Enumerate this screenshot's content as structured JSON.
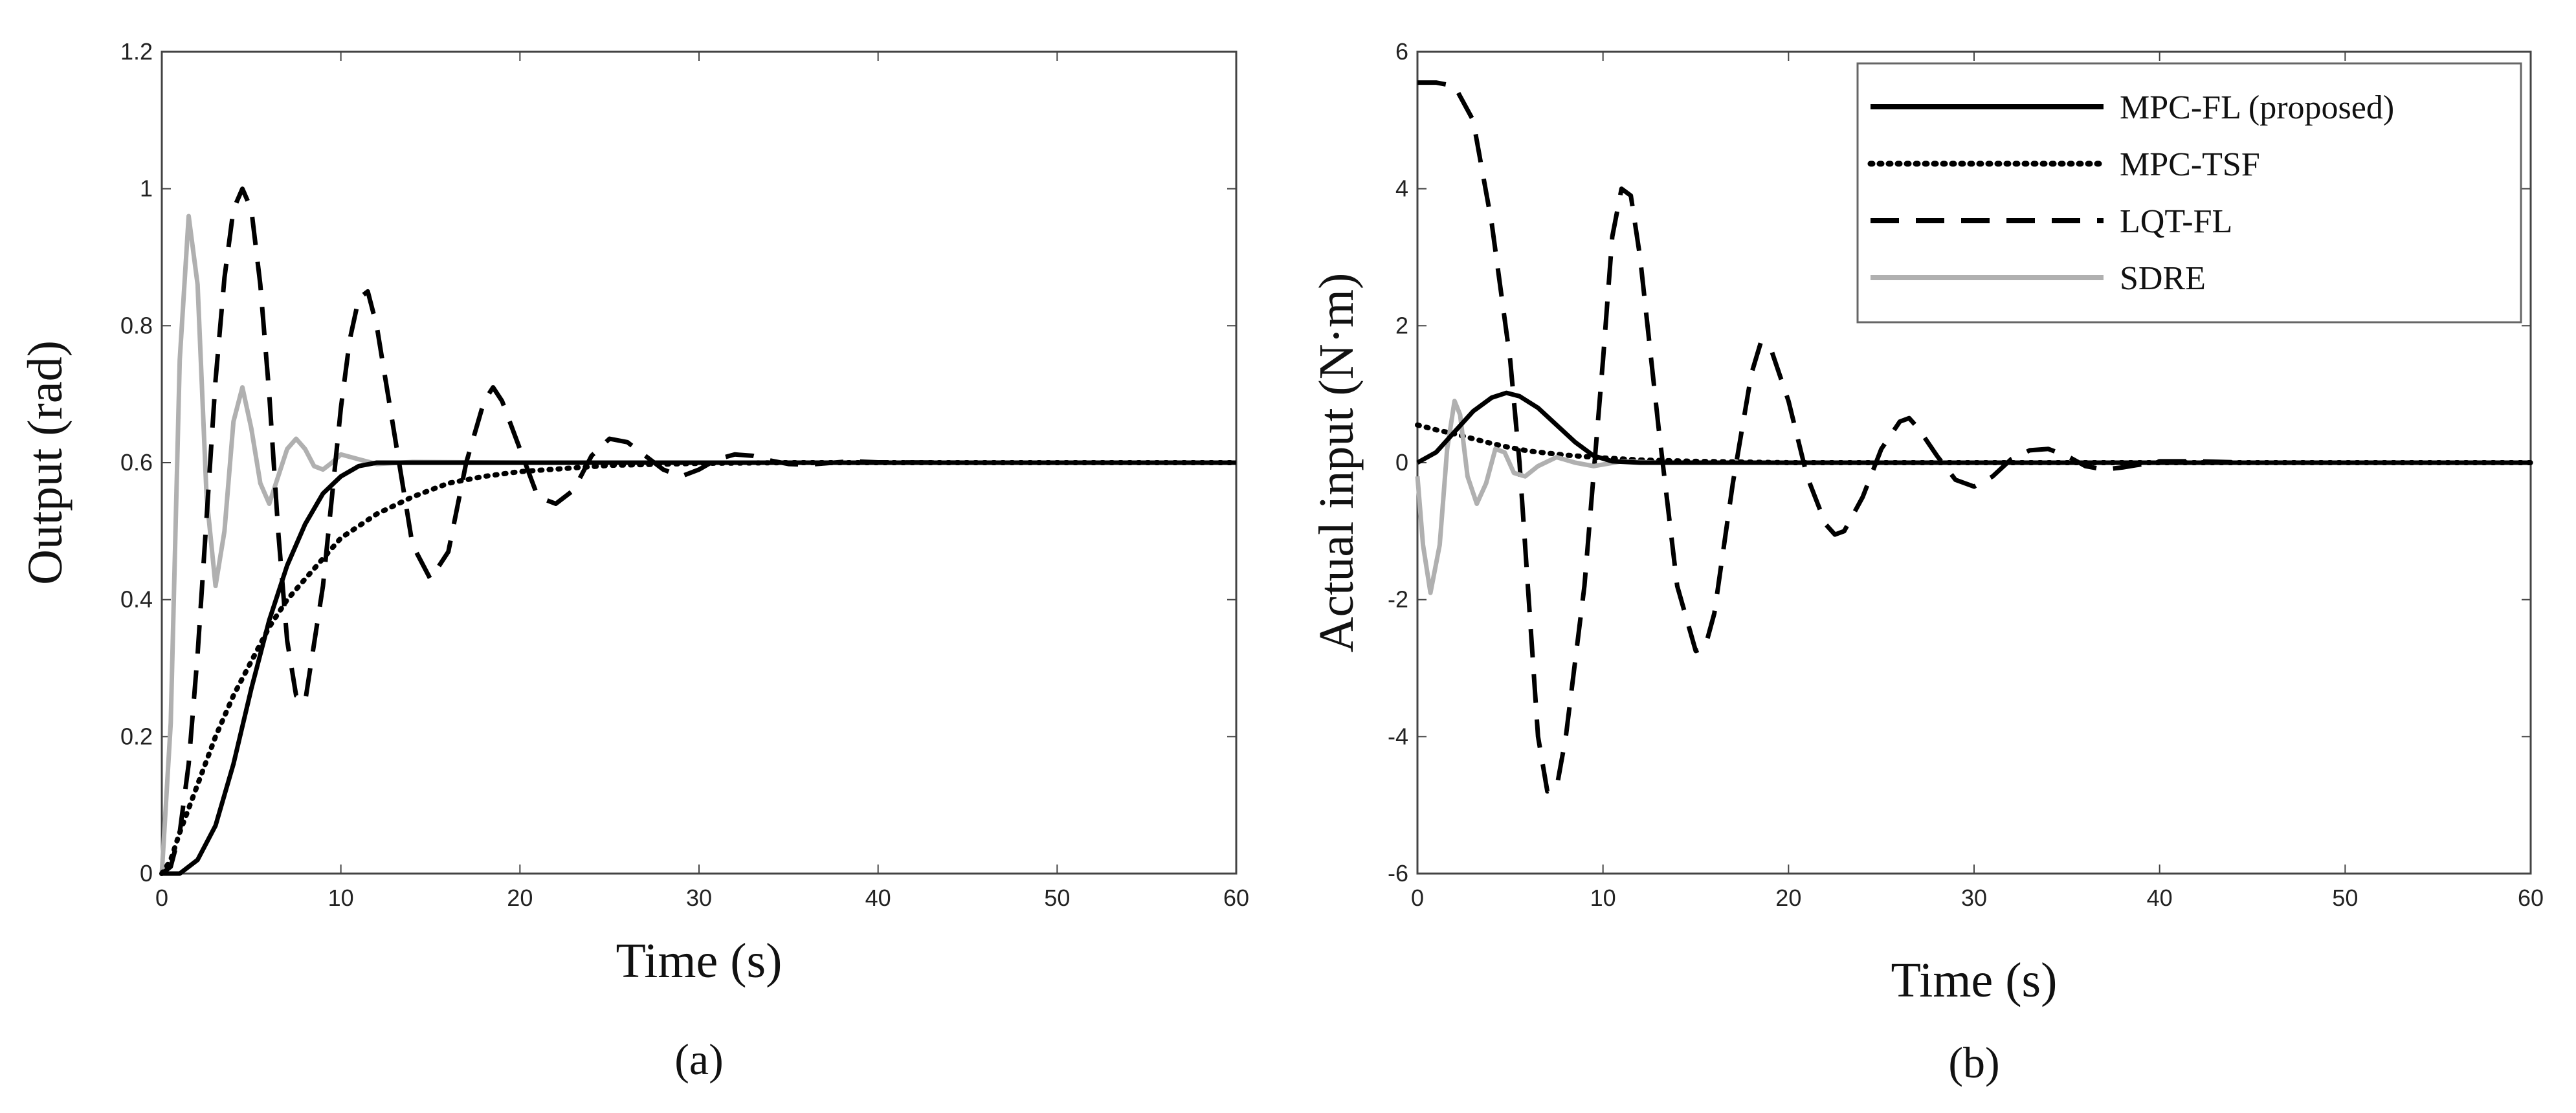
{
  "chart_data": [
    {
      "id": "a",
      "type": "line",
      "caption": "(a)",
      "xlabel": "Time (s)",
      "ylabel": "Output (rad)",
      "xlim": [
        0,
        60
      ],
      "ylim": [
        0,
        1.2
      ],
      "xticks": [
        0,
        10,
        20,
        30,
        40,
        50,
        60
      ],
      "yticks": [
        0,
        0.2,
        0.4,
        0.6,
        0.8,
        1,
        1.2
      ],
      "ytick_labels": [
        "0",
        "0.2",
        "0.4",
        "0.6",
        "0.8",
        "1",
        "1.2"
      ],
      "grid": false,
      "legend": null,
      "series": [
        {
          "name": "SDRE",
          "color": "#b0b0b0",
          "style": "solid",
          "points": [
            [
              0,
              0
            ],
            [
              0.5,
              0.22
            ],
            [
              1.0,
              0.75
            ],
            [
              1.5,
              0.96
            ],
            [
              2.0,
              0.86
            ],
            [
              2.5,
              0.55
            ],
            [
              3.0,
              0.42
            ],
            [
              3.5,
              0.5
            ],
            [
              4.0,
              0.66
            ],
            [
              4.5,
              0.71
            ],
            [
              5.0,
              0.65
            ],
            [
              5.5,
              0.57
            ],
            [
              6.0,
              0.54
            ],
            [
              6.5,
              0.58
            ],
            [
              7.0,
              0.62
            ],
            [
              7.5,
              0.635
            ],
            [
              8.0,
              0.62
            ],
            [
              8.5,
              0.595
            ],
            [
              9.0,
              0.59
            ],
            [
              9.5,
              0.6
            ],
            [
              10,
              0.612
            ],
            [
              11,
              0.605
            ],
            [
              12,
              0.598
            ],
            [
              14,
              0.601
            ],
            [
              20,
              0.6
            ],
            [
              60,
              0.6
            ]
          ]
        },
        {
          "name": "LQT-FL",
          "color": "#000000",
          "style": "dashed",
          "points": [
            [
              0,
              0
            ],
            [
              0.5,
              0.01
            ],
            [
              1.0,
              0.06
            ],
            [
              1.5,
              0.16
            ],
            [
              2.0,
              0.32
            ],
            [
              2.5,
              0.52
            ],
            [
              3.0,
              0.72
            ],
            [
              3.5,
              0.87
            ],
            [
              4.0,
              0.97
            ],
            [
              4.5,
              1.0
            ],
            [
              5.0,
              0.97
            ],
            [
              5.5,
              0.86
            ],
            [
              6.0,
              0.7
            ],
            [
              6.5,
              0.5
            ],
            [
              7.0,
              0.34
            ],
            [
              7.5,
              0.26
            ],
            [
              8.0,
              0.25
            ],
            [
              9.0,
              0.42
            ],
            [
              10,
              0.68
            ],
            [
              10.5,
              0.78
            ],
            [
              11,
              0.84
            ],
            [
              11.5,
              0.85
            ],
            [
              12,
              0.8
            ],
            [
              13,
              0.64
            ],
            [
              14,
              0.48
            ],
            [
              15,
              0.43
            ],
            [
              16,
              0.47
            ],
            [
              17,
              0.6
            ],
            [
              18,
              0.69
            ],
            [
              18.5,
              0.71
            ],
            [
              19,
              0.69
            ],
            [
              20,
              0.62
            ],
            [
              21,
              0.55
            ],
            [
              22,
              0.54
            ],
            [
              23,
              0.56
            ],
            [
              24,
              0.61
            ],
            [
              25,
              0.635
            ],
            [
              26,
              0.63
            ],
            [
              27,
              0.61
            ],
            [
              28,
              0.59
            ],
            [
              29,
              0.58
            ],
            [
              30,
              0.59
            ],
            [
              31,
              0.605
            ],
            [
              32,
              0.612
            ],
            [
              33,
              0.61
            ],
            [
              34,
              0.603
            ],
            [
              35,
              0.598
            ],
            [
              36,
              0.597
            ],
            [
              37,
              0.599
            ],
            [
              38,
              0.601
            ],
            [
              39,
              0.6015
            ],
            [
              40,
              0.6005
            ],
            [
              45,
              0.6
            ],
            [
              60,
              0.6
            ]
          ]
        },
        {
          "name": "MPC-TSF",
          "color": "#000000",
          "style": "dotted",
          "points": [
            [
              0,
              0
            ],
            [
              0.5,
              0.02
            ],
            [
              1,
              0.06
            ],
            [
              2,
              0.13
            ],
            [
              3,
              0.2
            ],
            [
              4,
              0.26
            ],
            [
              5,
              0.31
            ],
            [
              6,
              0.36
            ],
            [
              7,
              0.4
            ],
            [
              8,
              0.43
            ],
            [
              9,
              0.46
            ],
            [
              10,
              0.49
            ],
            [
              12,
              0.525
            ],
            [
              14,
              0.55
            ],
            [
              16,
              0.57
            ],
            [
              18,
              0.58
            ],
            [
              20,
              0.587
            ],
            [
              25,
              0.596
            ],
            [
              30,
              0.599
            ],
            [
              35,
              0.6
            ],
            [
              60,
              0.6
            ]
          ]
        },
        {
          "name": "MPC-FL (proposed)",
          "color": "#000000",
          "style": "solid",
          "points": [
            [
              0,
              0
            ],
            [
              1,
              0
            ],
            [
              2,
              0.02
            ],
            [
              3,
              0.07
            ],
            [
              4,
              0.16
            ],
            [
              5,
              0.27
            ],
            [
              6,
              0.37
            ],
            [
              7,
              0.45
            ],
            [
              8,
              0.51
            ],
            [
              9,
              0.555
            ],
            [
              10,
              0.58
            ],
            [
              11,
              0.595
            ],
            [
              12,
              0.6
            ],
            [
              14,
              0.6
            ],
            [
              60,
              0.6
            ]
          ]
        }
      ]
    },
    {
      "id": "b",
      "type": "line",
      "caption": "(b)",
      "xlabel": "Time (s)",
      "ylabel": "Actual input (N·m)",
      "xlim": [
        0,
        60
      ],
      "ylim": [
        -6,
        6
      ],
      "xticks": [
        0,
        10,
        20,
        30,
        40,
        50,
        60
      ],
      "yticks": [
        -6,
        -4,
        -2,
        0,
        2,
        4,
        6
      ],
      "ytick_labels": [
        "-6",
        "-4",
        "-2",
        "0",
        "2",
        "4",
        "6"
      ],
      "grid": false,
      "legend": {
        "placement": "top-right",
        "entries": [
          {
            "label": "MPC-FL (proposed)",
            "color": "#000000",
            "style": "solid"
          },
          {
            "label": "MPC-TSF",
            "color": "#000000",
            "style": "dotted"
          },
          {
            "label": "LQT-FL",
            "color": "#000000",
            "style": "dashed"
          },
          {
            "label": "SDRE",
            "color": "#b0b0b0",
            "style": "solid"
          }
        ]
      },
      "series": [
        {
          "name": "LQT-FL",
          "color": "#000000",
          "style": "dashed",
          "points": [
            [
              0,
              5.55
            ],
            [
              1,
              5.55
            ],
            [
              2,
              5.5
            ],
            [
              3,
              5.0
            ],
            [
              4,
              3.5
            ],
            [
              5,
              1.5
            ],
            [
              5.5,
              0
            ],
            [
              6,
              -2.0
            ],
            [
              6.5,
              -4.0
            ],
            [
              7.0,
              -4.8
            ],
            [
              7.5,
              -4.75
            ],
            [
              8,
              -4.0
            ],
            [
              9,
              -1.8
            ],
            [
              10,
              1.5
            ],
            [
              10.5,
              3.3
            ],
            [
              11,
              4.0
            ],
            [
              11.5,
              3.9
            ],
            [
              12,
              3.0
            ],
            [
              13,
              0.5
            ],
            [
              14,
              -1.8
            ],
            [
              15,
              -2.75
            ],
            [
              15.5,
              -2.7
            ],
            [
              16,
              -2.2
            ],
            [
              17,
              -0.3
            ],
            [
              18,
              1.3
            ],
            [
              18.5,
              1.75
            ],
            [
              19,
              1.7
            ],
            [
              20,
              0.9
            ],
            [
              21,
              -0.2
            ],
            [
              22,
              -0.9
            ],
            [
              22.5,
              -1.05
            ],
            [
              23,
              -1.0
            ],
            [
              24,
              -0.5
            ],
            [
              25,
              0.2
            ],
            [
              26,
              0.6
            ],
            [
              26.5,
              0.65
            ],
            [
              27,
              0.5
            ],
            [
              28,
              0.1
            ],
            [
              29,
              -0.25
            ],
            [
              30,
              -0.35
            ],
            [
              31,
              -0.2
            ],
            [
              32,
              0.05
            ],
            [
              33,
              0.18
            ],
            [
              34,
              0.2
            ],
            [
              35,
              0.1
            ],
            [
              36,
              -0.05
            ],
            [
              37,
              -0.1
            ],
            [
              38,
              -0.07
            ],
            [
              40,
              0.02
            ],
            [
              42,
              0.02
            ],
            [
              45,
              0
            ],
            [
              60,
              0
            ]
          ]
        },
        {
          "name": "MPC-TSF",
          "color": "#000000",
          "style": "dotted",
          "points": [
            [
              0,
              0.55
            ],
            [
              1,
              0.48
            ],
            [
              2,
              0.42
            ],
            [
              3,
              0.35
            ],
            [
              4,
              0.28
            ],
            [
              5,
              0.22
            ],
            [
              6,
              0.17
            ],
            [
              8,
              0.11
            ],
            [
              10,
              0.07
            ],
            [
              12,
              0.04
            ],
            [
              15,
              0.02
            ],
            [
              20,
              0.0
            ],
            [
              60,
              0.0
            ]
          ]
        },
        {
          "name": "SDRE",
          "color": "#b0b0b0",
          "style": "solid",
          "points": [
            [
              0,
              -0.2
            ],
            [
              0.3,
              -1.2
            ],
            [
              0.7,
              -1.9
            ],
            [
              1.2,
              -1.2
            ],
            [
              1.6,
              0.2
            ],
            [
              2.0,
              0.9
            ],
            [
              2.3,
              0.7
            ],
            [
              2.7,
              -0.2
            ],
            [
              3.2,
              -0.6
            ],
            [
              3.7,
              -0.3
            ],
            [
              4.2,
              0.2
            ],
            [
              4.7,
              0.15
            ],
            [
              5.2,
              -0.15
            ],
            [
              5.8,
              -0.2
            ],
            [
              6.5,
              -0.05
            ],
            [
              7.5,
              0.08
            ],
            [
              8.5,
              0.0
            ],
            [
              9.5,
              -0.05
            ],
            [
              11,
              0.02
            ],
            [
              13,
              0
            ],
            [
              60,
              0
            ]
          ]
        },
        {
          "name": "MPC-FL (proposed)",
          "color": "#000000",
          "style": "solid",
          "points": [
            [
              0,
              0
            ],
            [
              1,
              0.15
            ],
            [
              2,
              0.45
            ],
            [
              3,
              0.75
            ],
            [
              4,
              0.95
            ],
            [
              4.8,
              1.02
            ],
            [
              5.5,
              0.97
            ],
            [
              6.5,
              0.8
            ],
            [
              7.5,
              0.55
            ],
            [
              8.5,
              0.3
            ],
            [
              9.5,
              0.1
            ],
            [
              10.5,
              0.02
            ],
            [
              12,
              0
            ],
            [
              60,
              0
            ]
          ]
        }
      ]
    }
  ]
}
